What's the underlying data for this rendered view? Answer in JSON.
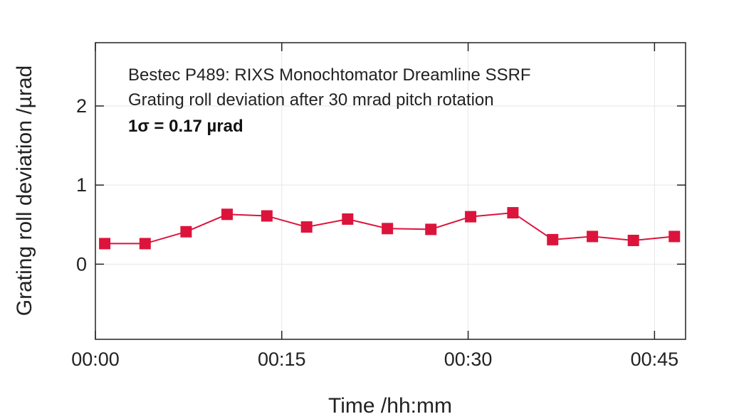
{
  "chart_data": {
    "type": "line",
    "xlabel": "Time /hh:mm",
    "ylabel": "Grating roll deviation /µrad",
    "xlim": [
      0,
      47.5
    ],
    "ylim": [
      -0.95,
      2.8
    ],
    "x_ticks": [
      {
        "value": 0,
        "label": "00:00"
      },
      {
        "value": 15,
        "label": "00:15"
      },
      {
        "value": 30,
        "label": "00:30"
      },
      {
        "value": 45,
        "label": "00:45"
      }
    ],
    "y_ticks": [
      {
        "value": 0,
        "label": "0"
      },
      {
        "value": 1,
        "label": "1"
      },
      {
        "value": 2,
        "label": "2"
      }
    ],
    "grid": true,
    "annotations": [
      "Bestec P489: RIXS Monochtomator Dreamline SSRF",
      "Grating roll deviation after 30 mrad pitch rotation",
      "1σ = 0.17 µrad"
    ],
    "colors": {
      "series": "#dc143c",
      "grid": "#e6e6e6",
      "axes": "#222222"
    },
    "series": [
      {
        "x": [
          0.75,
          4,
          7.3,
          10.6,
          13.8,
          17,
          20.3,
          23.5,
          27,
          30.2,
          33.6,
          36.8,
          40,
          43.3,
          46.6
        ],
        "y": [
          0.26,
          0.26,
          0.41,
          0.63,
          0.61,
          0.47,
          0.57,
          0.45,
          0.44,
          0.6,
          0.65,
          0.31,
          0.35,
          0.3,
          0.35
        ]
      }
    ]
  }
}
